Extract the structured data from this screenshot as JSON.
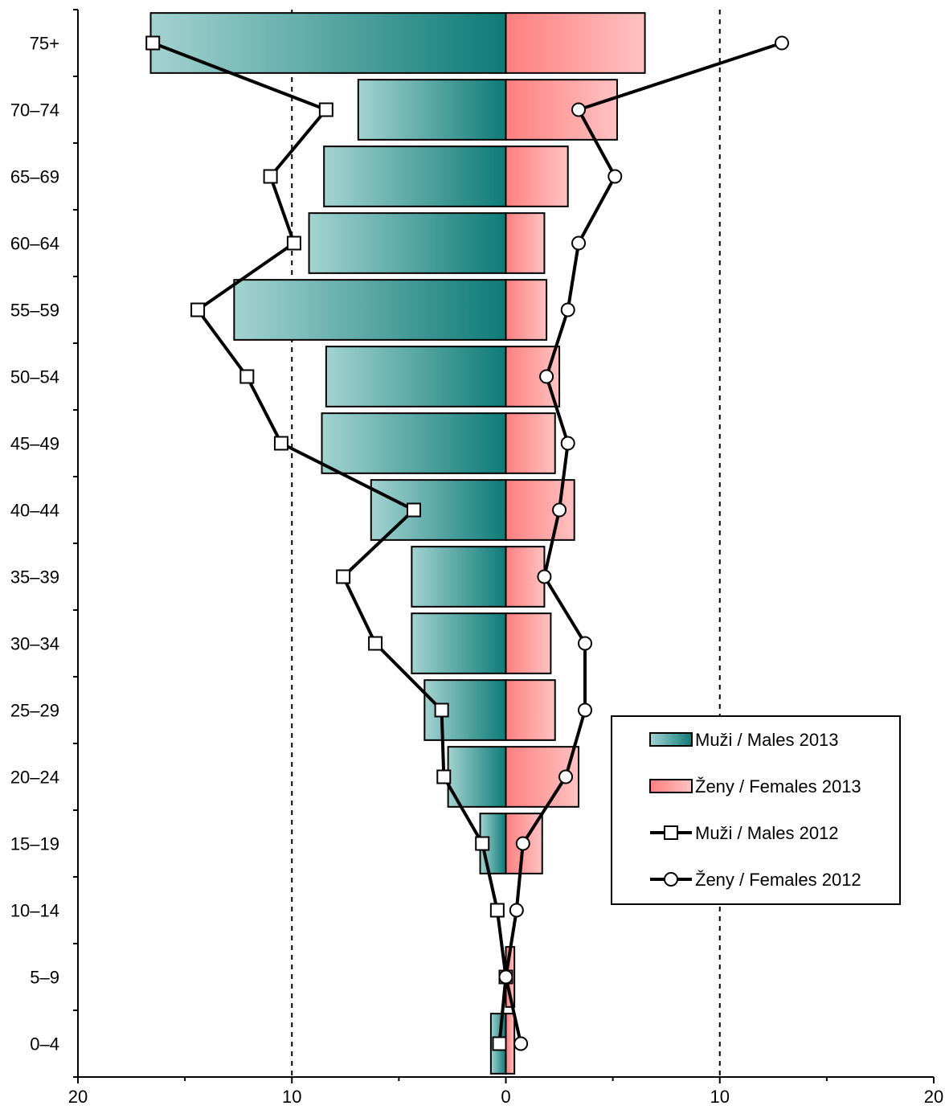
{
  "chart_data": {
    "type": "bar",
    "orientation": "horizontal",
    "layout": "population-pyramid",
    "categories": [
      "0–4",
      "5–9",
      "10–14",
      "15–19",
      "20–24",
      "25–29",
      "30–34",
      "35–39",
      "40–44",
      "45–49",
      "50–54",
      "55–59",
      "60–64",
      "65–69",
      "70–74",
      "75+"
    ],
    "xlim": [
      -20,
      20
    ],
    "x_ticks": [
      -20,
      -10,
      0,
      10,
      20
    ],
    "x_tick_labels": [
      "20",
      "10",
      "0",
      "10",
      "20"
    ],
    "reference_lines": [
      -10,
      10
    ],
    "series": [
      {
        "name": "Muži / Males 2013",
        "kind": "bar",
        "side": "left",
        "color_light": "#a3d3d1",
        "color_dark": "#0e7b77",
        "values": [
          0.7,
          0.0,
          0.0,
          1.2,
          2.7,
          3.8,
          4.4,
          4.4,
          6.3,
          8.6,
          8.4,
          12.7,
          9.2,
          8.5,
          6.9,
          16.6
        ]
      },
      {
        "name": "Ženy / Females 2013",
        "kind": "bar",
        "side": "right",
        "color_light": "#ffc2c2",
        "color_dark": "#ff7f7f",
        "values": [
          0.4,
          0.4,
          0.0,
          1.7,
          3.4,
          2.3,
          2.1,
          1.8,
          3.2,
          2.3,
          2.5,
          1.9,
          1.8,
          2.9,
          5.2,
          6.5
        ]
      },
      {
        "name": "Muži / Males 2012",
        "kind": "line",
        "marker": "square",
        "side": "left",
        "values": [
          0.3,
          0.0,
          0.4,
          1.1,
          2.9,
          3.0,
          6.1,
          7.6,
          4.3,
          10.5,
          12.1,
          14.4,
          9.9,
          11.0,
          8.4,
          16.5
        ]
      },
      {
        "name": "Ženy / Females 2012",
        "kind": "line",
        "marker": "circle",
        "side": "right",
        "values": [
          0.7,
          0.0,
          0.5,
          0.8,
          2.8,
          3.7,
          3.7,
          1.8,
          2.5,
          2.9,
          1.9,
          2.9,
          3.4,
          5.1,
          3.4,
          12.9
        ]
      }
    ],
    "legend": {
      "position": "right",
      "entries": [
        "Muži / Males 2013",
        "Ženy / Females 2013",
        "Muži / Males 2012",
        "Ženy / Females 2012"
      ]
    },
    "grid": false
  }
}
